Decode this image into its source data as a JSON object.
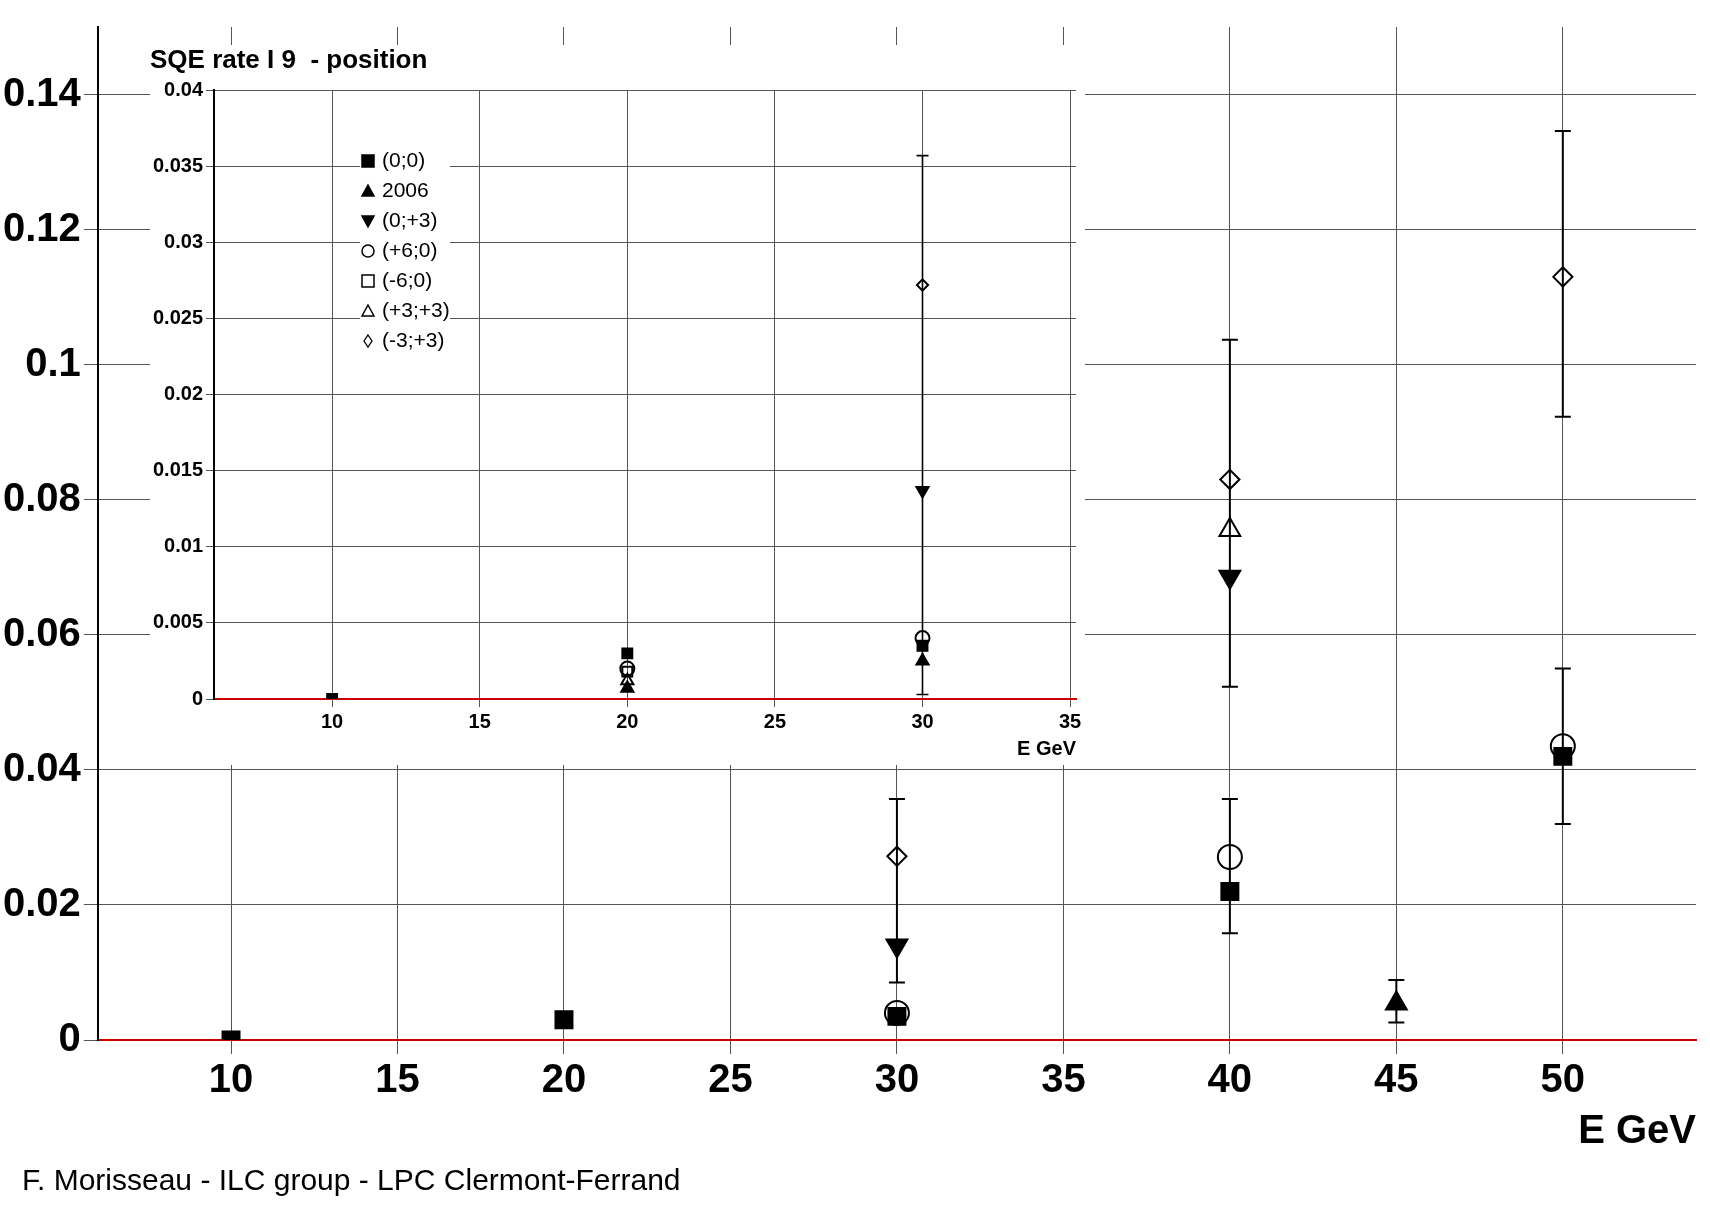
{
  "chart_data": [
    {
      "type": "scatter",
      "xlabel": "E GeV",
      "annotations": [
        "F. Morisseau - ILC group - LPC Clermont-Ferrand"
      ],
      "xlim": [
        6,
        54
      ],
      "xticks": [
        10,
        15,
        20,
        25,
        30,
        35,
        40,
        45,
        50
      ],
      "ylim": [
        0,
        0.15
      ],
      "yticks": [
        0,
        0.02,
        0.04,
        0.06,
        0.08,
        0.1,
        0.12,
        0.14
      ],
      "grid": true,
      "legend": false,
      "series": [
        {
          "color": "#000000",
          "marker": "square",
          "x": [
            10,
            20,
            30,
            40,
            50
          ],
          "values": [
            0,
            0.003,
            0.0035,
            0.022,
            0.042
          ]
        },
        {
          "color": "#000000",
          "marker": "triangle",
          "x": [
            45
          ],
          "values": [
            0.0054
          ],
          "errors": [
            [
              0.0026,
              0.0089
            ]
          ]
        },
        {
          "color": "#000000",
          "marker": "triangle-down",
          "x": [
            30,
            40
          ],
          "values": [
            0.014,
            0.0686
          ]
        },
        {
          "color": "#000000",
          "marker": "circle-open",
          "x": [
            30,
            40,
            50
          ],
          "values": [
            0.004,
            0.0271,
            0.0435
          ],
          "errors": [
            null,
            [
              0.0158,
              0.0357
            ],
            [
              0.032,
              0.055
            ]
          ]
        },
        {
          "color": "#000000",
          "marker": "triangle-open",
          "x": [
            40
          ],
          "values": [
            0.0755
          ]
        },
        {
          "color": "#000000",
          "marker": "diamond-open",
          "x": [
            30,
            40,
            50
          ],
          "values": [
            0.0272,
            0.083,
            0.113
          ],
          "errors": [
            [
              0.0085,
              0.0357
            ],
            [
              0.0523,
              0.1037
            ],
            [
              0.0923,
              0.1346
            ]
          ]
        }
      ]
    },
    {
      "type": "scatter",
      "title": "SQE rate I 9  - position",
      "xlabel": "E GeV",
      "xlim": [
        6,
        35.2
      ],
      "xticks": [
        10,
        15,
        20,
        25,
        30,
        35
      ],
      "ylim": [
        0,
        0.04
      ],
      "yticks": [
        0,
        0.005,
        0.01,
        0.015,
        0.02,
        0.025,
        0.03,
        0.035,
        0.04
      ],
      "grid": true,
      "legend": "top left",
      "series": [
        {
          "name": "(0;0)",
          "color": "#000000",
          "marker": "square",
          "x": [
            10,
            20,
            30
          ],
          "values": [
            0,
            0.003,
            0.0035
          ]
        },
        {
          "name": "2006",
          "color": "#000000",
          "marker": "triangle",
          "x": [
            20,
            30
          ],
          "values": [
            0.0007,
            0.0025
          ]
        },
        {
          "name": "(0;+3)",
          "color": "#000000",
          "marker": "triangle-down",
          "x": [
            30
          ],
          "values": [
            0.0137
          ]
        },
        {
          "name": "(+6;0)",
          "color": "#000000",
          "marker": "circle-open",
          "x": [
            20,
            30
          ],
          "values": [
            0.002,
            0.004
          ]
        },
        {
          "name": "(-6;0)",
          "color": "#000000",
          "marker": "square-open",
          "x": [
            20
          ],
          "values": [
            0.0018
          ]
        },
        {
          "name": "(+3;+3)",
          "color": "#000000",
          "marker": "triangle-open",
          "x": [
            20
          ],
          "values": [
            0.0012
          ]
        },
        {
          "name": "(-3;+3)",
          "color": "#000000",
          "marker": "diamond-open",
          "x": [
            30
          ],
          "values": [
            0.0272
          ],
          "errors": [
            [
              0.0003,
              0.0357
            ]
          ]
        }
      ]
    }
  ]
}
